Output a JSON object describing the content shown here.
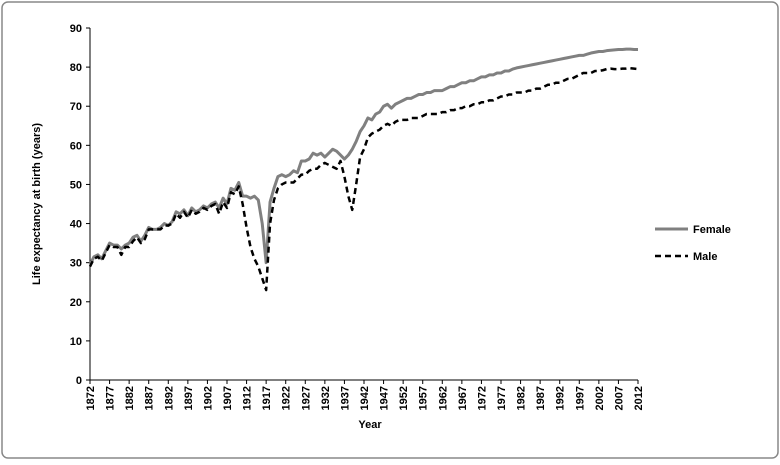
{
  "chart_data": {
    "type": "line",
    "x_label": "Year",
    "y_label": "Life expectancy at birth (years)",
    "x": [
      1872,
      1873,
      1874,
      1875,
      1876,
      1877,
      1878,
      1879,
      1880,
      1881,
      1882,
      1883,
      1884,
      1885,
      1886,
      1887,
      1888,
      1889,
      1890,
      1891,
      1892,
      1893,
      1894,
      1895,
      1896,
      1897,
      1898,
      1899,
      1900,
      1901,
      1902,
      1903,
      1904,
      1905,
      1906,
      1907,
      1908,
      1909,
      1910,
      1911,
      1912,
      1913,
      1914,
      1915,
      1916,
      1917,
      1918,
      1919,
      1920,
      1921,
      1922,
      1923,
      1924,
      1925,
      1926,
      1927,
      1928,
      1929,
      1930,
      1931,
      1932,
      1933,
      1934,
      1935,
      1936,
      1937,
      1938,
      1939,
      1940,
      1941,
      1942,
      1943,
      1944,
      1945,
      1946,
      1947,
      1948,
      1949,
      1950,
      1951,
      1952,
      1953,
      1954,
      1955,
      1956,
      1957,
      1958,
      1959,
      1960,
      1961,
      1962,
      1963,
      1964,
      1965,
      1966,
      1967,
      1968,
      1969,
      1970,
      1971,
      1972,
      1973,
      1974,
      1975,
      1976,
      1977,
      1978,
      1979,
      1980,
      1981,
      1982,
      1983,
      1984,
      1985,
      1986,
      1987,
      1988,
      1989,
      1990,
      1991,
      1992,
      1993,
      1994,
      1995,
      1996,
      1997,
      1998,
      1999,
      2000,
      2001,
      2002,
      2003,
      2004,
      2005,
      2006,
      2007,
      2008,
      2009,
      2010,
      2011,
      2012
    ],
    "series": [
      {
        "name": "Female",
        "color": "#808080",
        "dash": false,
        "values": [
          29.5,
          31.5,
          32,
          31,
          33,
          35,
          34.5,
          34.5,
          33.5,
          34.5,
          35,
          36.5,
          37,
          35.5,
          37,
          39,
          38.5,
          38.5,
          39,
          40,
          39.5,
          40.5,
          43,
          42.5,
          43.5,
          42,
          44,
          43,
          43.5,
          44.5,
          44,
          45,
          45.5,
          44,
          46.5,
          45,
          49,
          48.5,
          50.5,
          47,
          47,
          46.5,
          47,
          46,
          40,
          30,
          45.5,
          49,
          52,
          52.5,
          52,
          52.5,
          53.5,
          53,
          56,
          56,
          56.5,
          58,
          57.5,
          58,
          57,
          58,
          59,
          58.5,
          57.5,
          56.5,
          57.5,
          59,
          61,
          63.5,
          65,
          67,
          66.5,
          68,
          68.5,
          70,
          70.5,
          69.5,
          70.5,
          71,
          71.5,
          72,
          72,
          72.5,
          73,
          73,
          73.5,
          73.5,
          74,
          74,
          74,
          74.5,
          75,
          75,
          75.5,
          76,
          76,
          76.5,
          76.5,
          77,
          77.5,
          77.5,
          78,
          78,
          78.5,
          78.5,
          79,
          79,
          79.5,
          79.8,
          80,
          80.2,
          80.4,
          80.6,
          80.8,
          81,
          81.2,
          81.4,
          81.6,
          81.8,
          82,
          82.2,
          82.4,
          82.6,
          82.8,
          83,
          83,
          83.3,
          83.6,
          83.8,
          84,
          84,
          84.2,
          84.3,
          84.4,
          84.5,
          84.5,
          84.6,
          84.6,
          84.5,
          84.5
        ]
      },
      {
        "name": "Male",
        "color": "#000000",
        "dash": true,
        "values": [
          29,
          31,
          31.5,
          30.5,
          32.5,
          34.5,
          34,
          34,
          32,
          34,
          34,
          35.5,
          36.5,
          35,
          36,
          38.5,
          38.5,
          38.5,
          38.5,
          39.5,
          39.5,
          40,
          42.5,
          41.5,
          43,
          41.5,
          43.5,
          42.5,
          43,
          44,
          43.5,
          44.5,
          45,
          42.5,
          45.5,
          44,
          48,
          47.5,
          49.5,
          45,
          39,
          34,
          31,
          29,
          26,
          23,
          40,
          46,
          49,
          50,
          50.5,
          50.5,
          50.5,
          51.5,
          52.5,
          52.5,
          53.5,
          54,
          54,
          55,
          55.5,
          55,
          54.5,
          54,
          56,
          52,
          47,
          43.5,
          50,
          57,
          59,
          62,
          63,
          63.5,
          64,
          65,
          65.5,
          65,
          66,
          66.5,
          66.5,
          66.5,
          67,
          67,
          67,
          67.5,
          68,
          68,
          68,
          68,
          68.5,
          68.5,
          69,
          69,
          69.5,
          69.5,
          70,
          70,
          70.5,
          70.5,
          71,
          71,
          71.5,
          71.5,
          72,
          72.5,
          72.5,
          73,
          73,
          73.5,
          73.5,
          73.5,
          74,
          74,
          74.5,
          74.5,
          75,
          75.5,
          75.5,
          76,
          76,
          76.5,
          77,
          77,
          77.5,
          78,
          78.5,
          78.5,
          78.5,
          79,
          79,
          79.2,
          79.5,
          79.6,
          79.5,
          79.5,
          79.6,
          79.6,
          79.7,
          79.6,
          79.5
        ]
      }
    ],
    "xlim": [
      1872,
      2012
    ],
    "xticks": [
      1872,
      1877,
      1882,
      1887,
      1892,
      1897,
      1902,
      1907,
      1912,
      1917,
      1922,
      1927,
      1932,
      1937,
      1942,
      1947,
      1952,
      1957,
      1962,
      1967,
      1972,
      1977,
      1982,
      1987,
      1992,
      1997,
      2002,
      2007,
      2012
    ],
    "ylim": [
      0,
      90
    ],
    "yticks": [
      0,
      10,
      20,
      30,
      40,
      50,
      60,
      70,
      80,
      90
    ],
    "legend": "right"
  }
}
